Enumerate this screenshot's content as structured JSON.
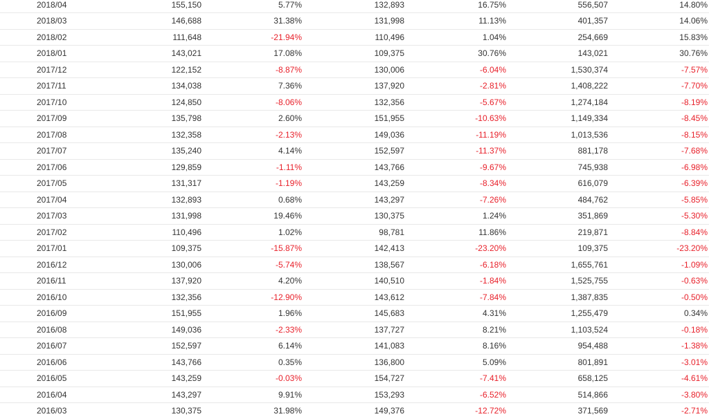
{
  "colors": {
    "negative": "#e8202a",
    "text": "#333333",
    "divider": "#e8e8e8"
  },
  "rows": [
    [
      "2018/04",
      "155,150",
      "5.77%",
      "132,893",
      "16.75%",
      "556,507",
      "14.80%"
    ],
    [
      "2018/03",
      "146,688",
      "31.38%",
      "131,998",
      "11.13%",
      "401,357",
      "14.06%"
    ],
    [
      "2018/02",
      "111,648",
      "-21.94%",
      "110,496",
      "1.04%",
      "254,669",
      "15.83%"
    ],
    [
      "2018/01",
      "143,021",
      "17.08%",
      "109,375",
      "30.76%",
      "143,021",
      "30.76%"
    ],
    [
      "2017/12",
      "122,152",
      "-8.87%",
      "130,006",
      "-6.04%",
      "1,530,374",
      "-7.57%"
    ],
    [
      "2017/11",
      "134,038",
      "7.36%",
      "137,920",
      "-2.81%",
      "1,408,222",
      "-7.70%"
    ],
    [
      "2017/10",
      "124,850",
      "-8.06%",
      "132,356",
      "-5.67%",
      "1,274,184",
      "-8.19%"
    ],
    [
      "2017/09",
      "135,798",
      "2.60%",
      "151,955",
      "-10.63%",
      "1,149,334",
      "-8.45%"
    ],
    [
      "2017/08",
      "132,358",
      "-2.13%",
      "149,036",
      "-11.19%",
      "1,013,536",
      "-8.15%"
    ],
    [
      "2017/07",
      "135,240",
      "4.14%",
      "152,597",
      "-11.37%",
      "881,178",
      "-7.68%"
    ],
    [
      "2017/06",
      "129,859",
      "-1.11%",
      "143,766",
      "-9.67%",
      "745,938",
      "-6.98%"
    ],
    [
      "2017/05",
      "131,317",
      "-1.19%",
      "143,259",
      "-8.34%",
      "616,079",
      "-6.39%"
    ],
    [
      "2017/04",
      "132,893",
      "0.68%",
      "143,297",
      "-7.26%",
      "484,762",
      "-5.85%"
    ],
    [
      "2017/03",
      "131,998",
      "19.46%",
      "130,375",
      "1.24%",
      "351,869",
      "-5.30%"
    ],
    [
      "2017/02",
      "110,496",
      "1.02%",
      "98,781",
      "11.86%",
      "219,871",
      "-8.84%"
    ],
    [
      "2017/01",
      "109,375",
      "-15.87%",
      "142,413",
      "-23.20%",
      "109,375",
      "-23.20%"
    ],
    [
      "2016/12",
      "130,006",
      "-5.74%",
      "138,567",
      "-6.18%",
      "1,655,761",
      "-1.09%"
    ],
    [
      "2016/11",
      "137,920",
      "4.20%",
      "140,510",
      "-1.84%",
      "1,525,755",
      "-0.63%"
    ],
    [
      "2016/10",
      "132,356",
      "-12.90%",
      "143,612",
      "-7.84%",
      "1,387,835",
      "-0.50%"
    ],
    [
      "2016/09",
      "151,955",
      "1.96%",
      "145,683",
      "4.31%",
      "1,255,479",
      "0.34%"
    ],
    [
      "2016/08",
      "149,036",
      "-2.33%",
      "137,727",
      "8.21%",
      "1,103,524",
      "-0.18%"
    ],
    [
      "2016/07",
      "152,597",
      "6.14%",
      "141,083",
      "8.16%",
      "954,488",
      "-1.38%"
    ],
    [
      "2016/06",
      "143,766",
      "0.35%",
      "136,800",
      "5.09%",
      "801,891",
      "-3.01%"
    ],
    [
      "2016/05",
      "143,259",
      "-0.03%",
      "154,727",
      "-7.41%",
      "658,125",
      "-4.61%"
    ],
    [
      "2016/04",
      "143,297",
      "9.91%",
      "153,293",
      "-6.52%",
      "514,866",
      "-3.80%"
    ],
    [
      "2016/03",
      "130,375",
      "31.98%",
      "149,376",
      "-12.72%",
      "371,569",
      "-2.71%"
    ]
  ]
}
